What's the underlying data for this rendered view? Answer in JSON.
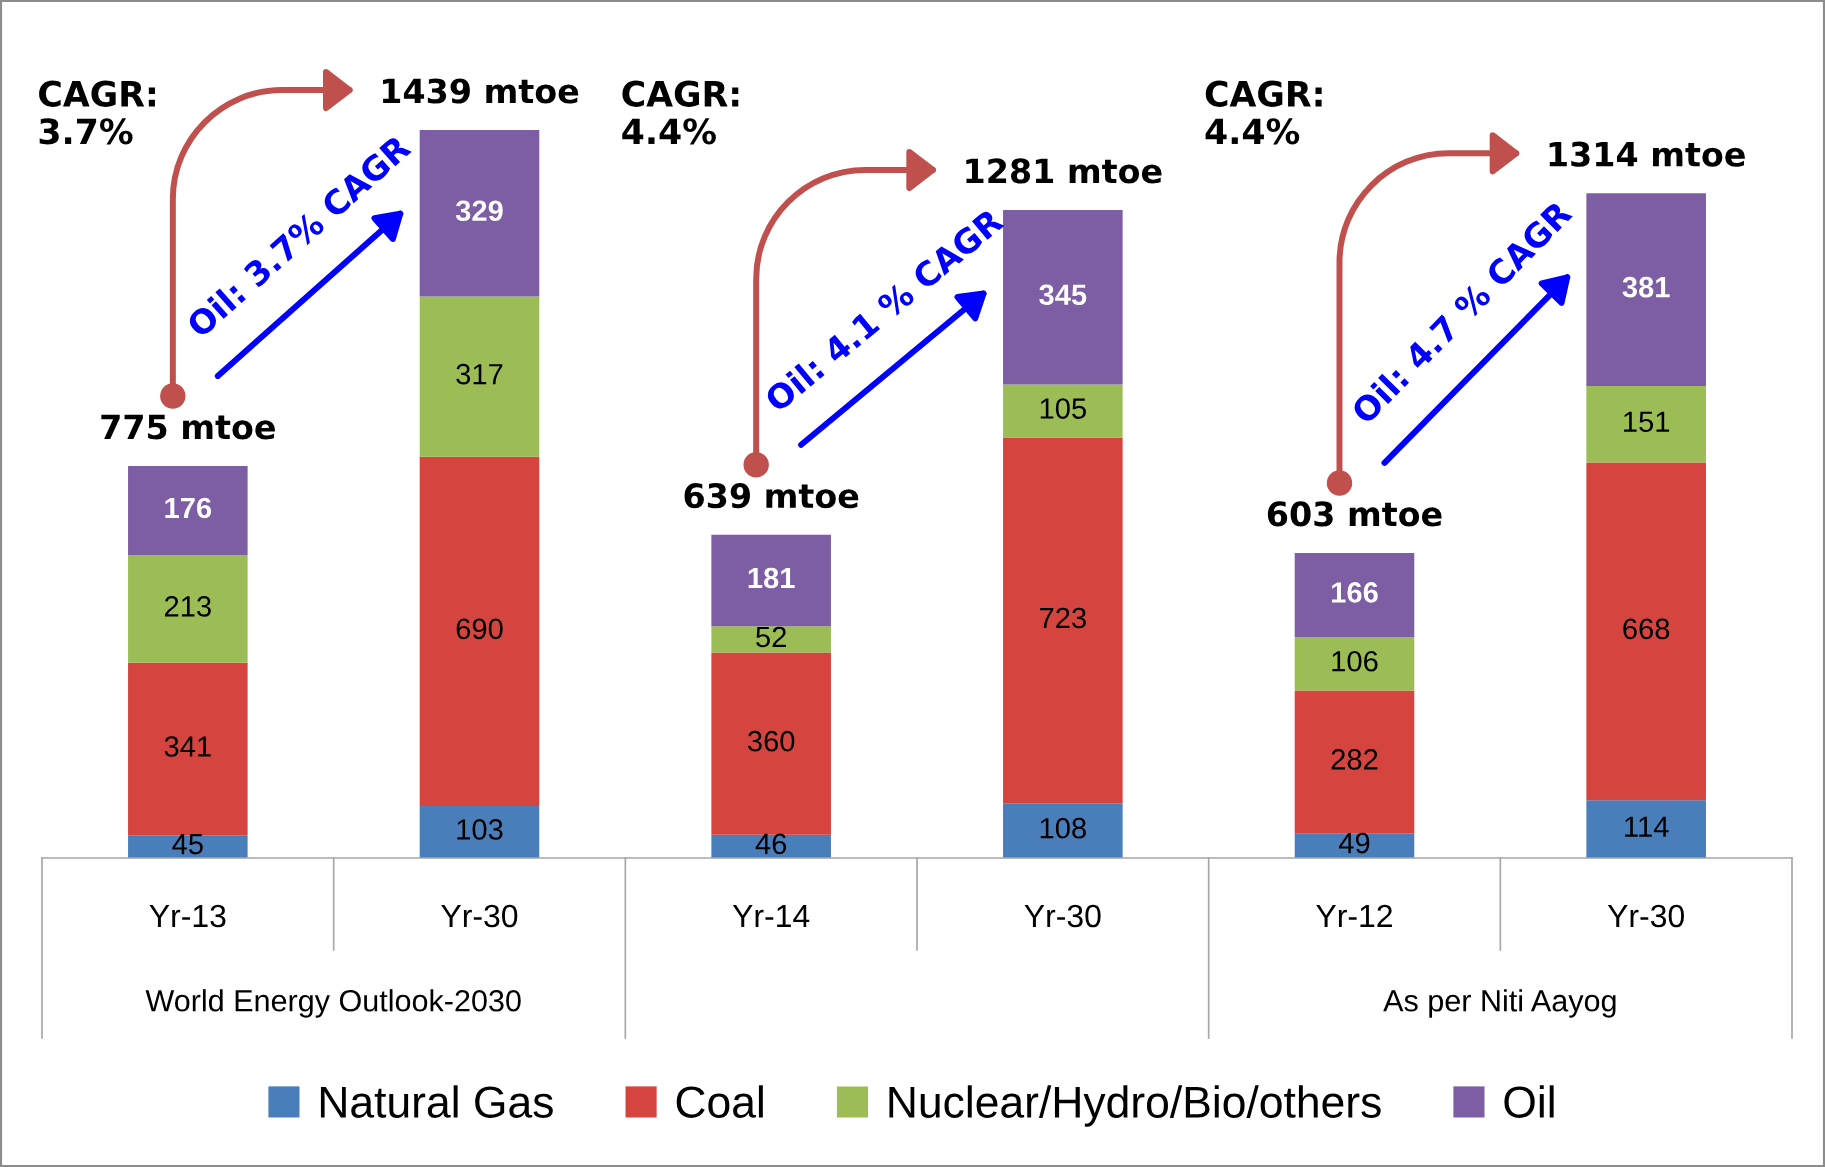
{
  "chart_data": [
    {
      "type": "bar",
      "stacked": true,
      "categories": [
        "Yr-13",
        "Yr-30"
      ],
      "xlabel": "World Energy Outlook-2030",
      "series": [
        {
          "name": "Natural Gas",
          "color": "#4a7ebb",
          "values": [
            45,
            103
          ]
        },
        {
          "name": "Coal",
          "color": "#d5443f",
          "values": [
            341,
            690
          ]
        },
        {
          "name": "Nuclear/Hydro/Bio/others",
          "color": "#9cbd55",
          "values": [
            213,
            317
          ]
        },
        {
          "name": "Oil",
          "color": "#7d5ea5",
          "values": [
            176,
            329
          ]
        }
      ],
      "data_labels": true,
      "totals": [
        "775 mtoe",
        "1439 mtoe"
      ],
      "annotations": [
        "CAGR:\n3.7%",
        "Oil: 3.7% CAGR"
      ],
      "legend": "bottom",
      "tick_labels": "x"
    },
    {
      "type": "bar",
      "stacked": true,
      "categories": [
        "Yr-14",
        "Yr-30"
      ],
      "series": [
        {
          "color": "#4a7ebb",
          "values": [
            46,
            108
          ]
        },
        {
          "color": "#d5443f",
          "values": [
            360,
            723
          ]
        },
        {
          "color": "#9cbd55",
          "values": [
            52,
            105
          ]
        },
        {
          "color": "#7d5ea5",
          "values": [
            181,
            345
          ]
        }
      ],
      "data_labels": true,
      "totals": [
        "639 mtoe",
        "1281 mtoe"
      ],
      "annotations": [
        "CAGR:\n4.4%",
        "Oil: 4.1 % CAGR"
      ],
      "tick_labels": "x"
    },
    {
      "type": "bar",
      "stacked": true,
      "categories": [
        "Yr-12",
        "Yr-30"
      ],
      "xlabel": "As per Niti Aayog",
      "series": [
        {
          "color": "#4a7ebb",
          "values": [
            49,
            114
          ]
        },
        {
          "color": "#d5443f",
          "values": [
            282,
            668
          ]
        },
        {
          "color": "#9cbd55",
          "values": [
            106,
            151
          ]
        },
        {
          "color": "#7d5ea5",
          "values": [
            166,
            381
          ]
        }
      ],
      "data_labels": true,
      "totals": [
        "603 mtoe",
        "1314 mtoe"
      ],
      "annotations": [
        "CAGR:\n4.4%",
        "Oil: 4.7 % CAGR"
      ],
      "tick_labels": "x"
    }
  ]
}
